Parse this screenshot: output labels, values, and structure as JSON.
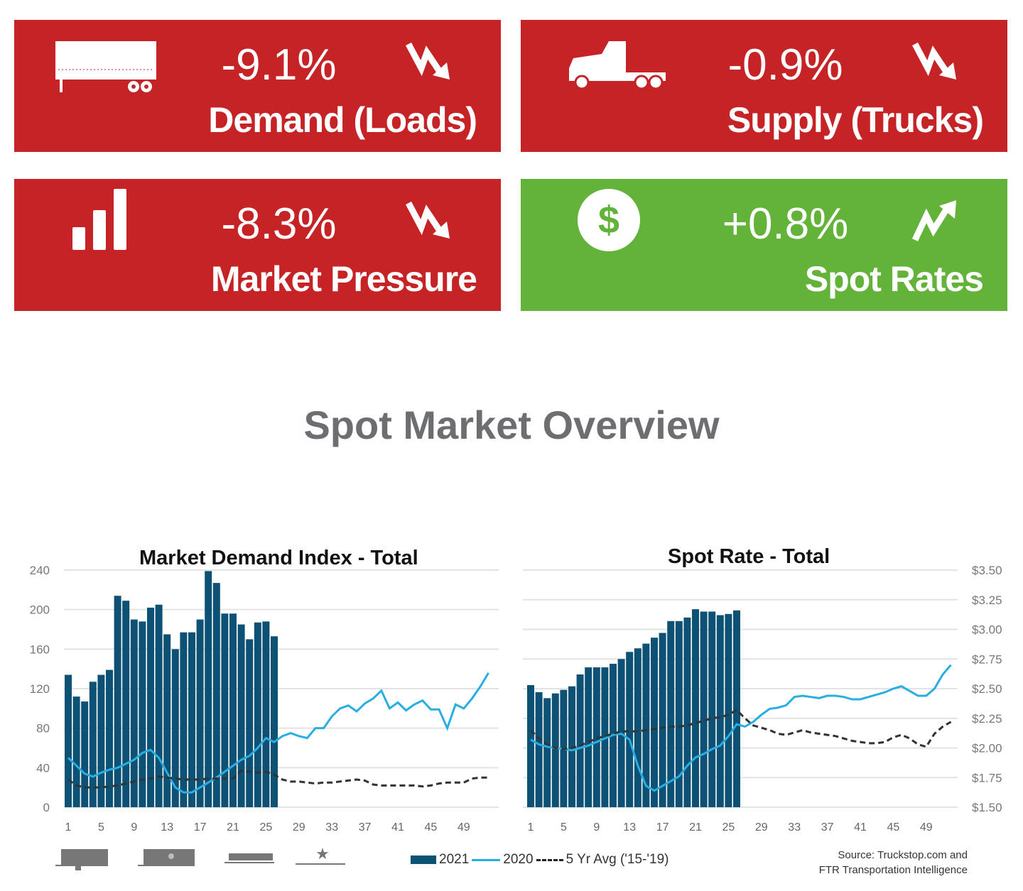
{
  "cards": [
    {
      "value": "-9.1%",
      "label": "Demand (Loads)",
      "icon": "flatbed-trailer-icon",
      "trend": "down",
      "color": "#c62326"
    },
    {
      "value": "-0.9%",
      "label": "Supply (Trucks)",
      "icon": "semi-truck-icon",
      "trend": "down",
      "color": "#c62326"
    },
    {
      "value": "-8.3%",
      "label": "Market Pressure",
      "icon": "bar-chart-icon",
      "trend": "down",
      "color": "#c62326"
    },
    {
      "value": "+0.8%",
      "label": "Spot Rates",
      "icon": "dollar-icon",
      "trend": "up",
      "color": "#63b33b"
    }
  ],
  "page_title": "Spot Market Overview",
  "chart_data": [
    {
      "type": "bar",
      "title": "Market Demand Index - Total",
      "ylim": [
        0,
        240
      ],
      "yticks": [
        "0",
        "40",
        "80",
        "120",
        "160",
        "200",
        "240"
      ],
      "xticks": [
        "1",
        "5",
        "9",
        "13",
        "17",
        "21",
        "25",
        "29",
        "33",
        "37",
        "41",
        "45",
        "49"
      ],
      "grid": true,
      "series": [
        {
          "name": "2021",
          "type": "bar",
          "color": "#0d5175",
          "values": [
            134,
            112,
            107,
            127,
            134,
            139,
            214,
            209,
            190,
            188,
            202,
            205,
            175,
            160,
            177,
            177,
            190,
            239,
            227,
            196,
            196,
            185,
            170,
            187,
            188,
            173
          ]
        },
        {
          "name": "2020",
          "type": "line",
          "color": "#29aee3",
          "values": [
            50,
            42,
            34,
            31,
            35,
            38,
            40,
            44,
            48,
            55,
            58,
            50,
            35,
            20,
            15,
            15,
            20,
            25,
            30,
            36,
            42,
            48,
            52,
            60,
            70,
            66,
            72,
            75,
            72,
            70,
            80,
            80,
            92,
            100,
            103,
            97,
            105,
            110,
            118,
            100,
            106,
            98,
            104,
            108,
            99,
            99,
            80,
            104,
            100,
            110,
            122,
            136
          ]
        },
        {
          "name": "5 Yr Avg ('15-'19)",
          "type": "dashed",
          "color": "#333333",
          "values": [
            28,
            22,
            20,
            20,
            20,
            21,
            22,
            24,
            26,
            28,
            29,
            31,
            30,
            29,
            28,
            28,
            28,
            29,
            29,
            29,
            29,
            37,
            36,
            35,
            36,
            33,
            28,
            26,
            26,
            25,
            24,
            25,
            25,
            26,
            27,
            28,
            27,
            23,
            22,
            22,
            22,
            22,
            22,
            21,
            22,
            24,
            25,
            25,
            25,
            29,
            30,
            30
          ]
        }
      ]
    },
    {
      "type": "bar",
      "title": "Spot Rate - Total",
      "ylim": [
        1.5,
        3.5
      ],
      "yticks": [
        "$1.50",
        "$1.75",
        "$2.00",
        "$2.25",
        "$2.50",
        "$2.75",
        "$3.00",
        "$3.25",
        "$3.50"
      ],
      "xticks": [
        "1",
        "5",
        "9",
        "13",
        "17",
        "21",
        "25",
        "29",
        "33",
        "37",
        "41",
        "45",
        "49"
      ],
      "grid": true,
      "series": [
        {
          "name": "2021",
          "type": "bar",
          "color": "#0d5175",
          "values": [
            2.53,
            2.47,
            2.42,
            2.46,
            2.49,
            2.52,
            2.62,
            2.68,
            2.68,
            2.68,
            2.71,
            2.75,
            2.81,
            2.84,
            2.88,
            2.93,
            2.97,
            3.07,
            3.07,
            3.1,
            3.17,
            3.15,
            3.15,
            3.12,
            3.13,
            3.16
          ]
        },
        {
          "name": "2020",
          "type": "line",
          "color": "#29aee3",
          "values": [
            2.07,
            2.03,
            2.01,
            2.0,
            1.99,
            1.98,
            2.0,
            2.02,
            2.05,
            2.08,
            2.11,
            2.12,
            2.07,
            1.85,
            1.68,
            1.64,
            1.68,
            1.72,
            1.76,
            1.85,
            1.92,
            1.95,
            1.99,
            2.02,
            2.1,
            2.2,
            2.18,
            2.22,
            2.28,
            2.33,
            2.34,
            2.36,
            2.43,
            2.44,
            2.43,
            2.42,
            2.44,
            2.44,
            2.43,
            2.41,
            2.41,
            2.43,
            2.45,
            2.47,
            2.5,
            2.52,
            2.48,
            2.44,
            2.44,
            2.5,
            2.62,
            2.7
          ]
        },
        {
          "name": "5 Yr Avg ('15-'19)",
          "type": "dashed",
          "color": "#333333",
          "values": [
            2.15,
            2.08,
            2.03,
            2.0,
            1.99,
            2.0,
            2.02,
            2.05,
            2.08,
            2.1,
            2.12,
            2.14,
            2.14,
            2.14,
            2.15,
            2.16,
            2.17,
            2.18,
            2.18,
            2.19,
            2.21,
            2.23,
            2.25,
            2.26,
            2.28,
            2.32,
            2.25,
            2.19,
            2.17,
            2.15,
            2.12,
            2.11,
            2.13,
            2.15,
            2.13,
            2.12,
            2.11,
            2.1,
            2.08,
            2.06,
            2.05,
            2.04,
            2.04,
            2.05,
            2.09,
            2.11,
            2.08,
            2.03,
            2.01,
            2.12,
            2.18,
            2.22
          ]
        }
      ]
    }
  ],
  "legend": {
    "items": [
      "2021",
      "2020",
      "5 Yr Avg ('15-'19)"
    ]
  },
  "source": {
    "line1": "Source: Truckstop.com and",
    "line2": "FTR Transportation Intelligence"
  }
}
